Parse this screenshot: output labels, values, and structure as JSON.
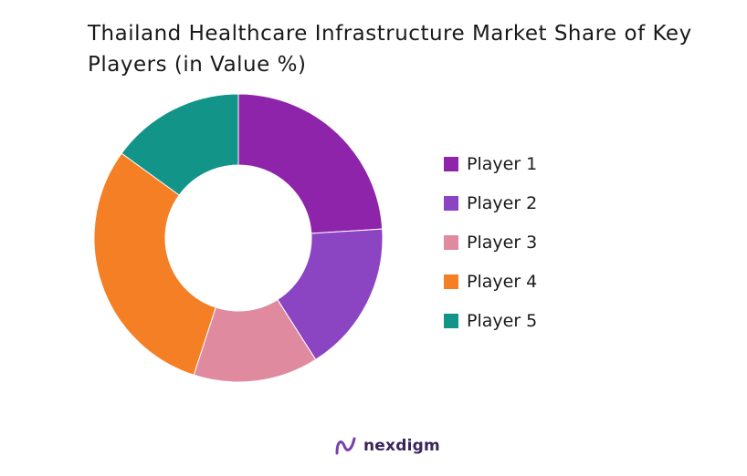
{
  "chart_data": {
    "type": "pie",
    "variant": "donut",
    "title": "Thailand Healthcare Infrastructure Market Share of Key Players (in Value %)",
    "categories": [
      "Player 1",
      "Player 2",
      "Player 3",
      "Player 4",
      "Player 5"
    ],
    "values": [
      24,
      17,
      14,
      30,
      15
    ],
    "colors": [
      "#8e24aa",
      "#8b44c2",
      "#e08aa0",
      "#f57f25",
      "#129488"
    ],
    "legend_position": "right"
  },
  "brand": {
    "name": "nexdigm",
    "icon": "nexdigm-logo-icon"
  }
}
